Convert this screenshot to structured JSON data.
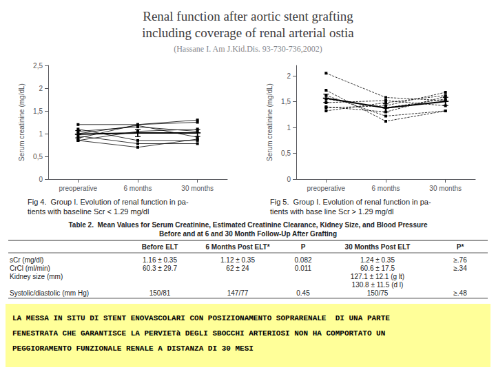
{
  "title": [
    "Renal function after aortic stent grafting",
    "including coverage of renal arterial ostia"
  ],
  "subtitle": "(Hassane I. Am J.Kid.Dis. 93-730-736,2002)",
  "chart_data": [
    {
      "type": "line",
      "caption": [
        "Fig 4.  Group I. Evolution of renal function in pa-",
        "tients with baseline Scr < 1.29 mg/dl"
      ],
      "categories": [
        "preoperative",
        "6 months",
        "30 months"
      ],
      "ylabel": "Serum creatinine (mg/dL)",
      "ylim": [
        0,
        2.5
      ],
      "yticks": [
        0,
        {
          "value": 0.5,
          "label": "0,5"
        },
        1,
        {
          "value": 1.5,
          "label": "1,5"
        },
        2,
        {
          "value": 2.5,
          "label": "2,5"
        }
      ],
      "grid": false,
      "series": [
        {
          "color": "#000000",
          "line_style": "solid",
          "marker": "square",
          "values": [
            0.9,
            1.2,
            1.3
          ]
        },
        {
          "color": "#000000",
          "line_style": "solid",
          "marker": "square",
          "values": [
            1.05,
            1.15,
            1.05
          ]
        },
        {
          "color": "#000000",
          "line_style": "solid",
          "marker": "square",
          "values": [
            1.1,
            0.85,
            0.85
          ]
        },
        {
          "color": "#000000",
          "line_style": "solid",
          "marker": "square",
          "values": [
            0.85,
            0.7,
            0.88
          ]
        },
        {
          "color": "#000000",
          "line_style": "solid",
          "marker": "square",
          "values": [
            1.2,
            1.2,
            1.25
          ]
        },
        {
          "color": "#000000",
          "line_style": "solid",
          "marker": "square",
          "values": [
            0.85,
            1.05,
            1.1
          ]
        },
        {
          "color": "#000000",
          "line_style": "solid",
          "marker": "square",
          "values": [
            1.0,
            1.18,
            0.92
          ]
        },
        {
          "color": "#000000",
          "line_style": "solid",
          "marker": "square",
          "values": [
            0.95,
            0.78,
            0.78
          ]
        },
        {
          "color": "#000000",
          "line_style": "solid",
          "marker": "plus",
          "values": [
            0.9875,
            1.01375,
            1.01625
          ],
          "error": [
            0.08,
            0.08,
            0.08
          ]
        }
      ]
    },
    {
      "type": "line",
      "caption": [
        "Fig 5.  Group I. Evolution of renal function in pa-",
        "tients with base line Scr > 1.29 mg/dl"
      ],
      "categories": [
        "preoperative",
        "6 months",
        "30 months"
      ],
      "ylabel": "Serum creatinine (mg/dL)",
      "ylim": [
        0,
        2.2
      ],
      "yticks": [
        0,
        {
          "value": 0.5,
          "label": "0,5"
        },
        1,
        {
          "value": 1.5,
          "label": "1,5"
        },
        2
      ],
      "grid": false,
      "series": [
        {
          "color": "#000000",
          "line_style": "dashed",
          "marker": "square",
          "values": [
            1.4,
            1.3,
            1.6
          ]
        },
        {
          "color": "#000000",
          "line_style": "dashed",
          "marker": "square",
          "values": [
            1.55,
            1.38,
            1.55
          ]
        },
        {
          "color": "#000000",
          "line_style": "dashed",
          "marker": "square",
          "values": [
            1.38,
            1.42,
            1.68
          ]
        },
        {
          "color": "#000000",
          "line_style": "dashed",
          "marker": "square",
          "values": [
            1.62,
            1.22,
            1.32
          ]
        },
        {
          "color": "#000000",
          "line_style": "dashed",
          "marker": "square",
          "values": [
            1.48,
            1.52,
            1.42
          ]
        },
        {
          "color": "#000000",
          "line_style": "dashed",
          "marker": "square",
          "values": [
            2.05,
            1.58,
            1.52
          ]
        },
        {
          "color": "#000000",
          "line_style": "dashed",
          "marker": "square",
          "values": [
            1.72,
            1.12,
            1.32
          ]
        },
        {
          "color": "#000000",
          "line_style": "dashed",
          "marker": "square",
          "values": [
            1.32,
            1.48,
            1.62
          ]
        },
        {
          "color": "#000000",
          "line_style": "solid",
          "marker": "plus",
          "values": [
            1.565,
            1.3775,
            1.50375
          ],
          "error": [
            0.08,
            0.08,
            0.08
          ]
        }
      ]
    }
  ],
  "table": {
    "title": [
      "Table 2.  Mean Values for Serum Creatinine, Estimated Creatinine Clearance, Kidney Size, and Blood Pressure",
      "Before and at 6 and 30 Month Follow-Up After Grafting"
    ],
    "headers": [
      "Before ELT",
      "6 Months Post ELT*",
      "P",
      "30 Months Post ELT",
      "P*"
    ],
    "rows": [
      [
        "sCr (mg/dl)",
        "1.16 ± 0.35",
        "1.12 ± 0.35",
        "0.082",
        "1.24 ± 0.35",
        "≥.76"
      ],
      [
        "CrCl (ml/min)",
        "60.3 ± 29.7",
        "62 ± 24",
        "0.011",
        "60.6 ± 17.5",
        "≥.34"
      ],
      [
        "Kidney size (mm)",
        null,
        null,
        null,
        "127.1 ± 12.1 (g lt)",
        null
      ],
      [
        null,
        null,
        null,
        null,
        "130.8 ± 11.5 (d l)",
        null
      ],
      [
        "Systolic/diastolic (mm Hg)",
        "150/81",
        "147/77",
        "0.45",
        "150/75",
        "≥.48"
      ]
    ]
  },
  "note": {
    "text": [
      "LA MESSA IN SITU DI STENT ENOVASCOLARI CON POSIZIONAMENTO SOPRARENALE  DI UNA PARTE",
      "FENESTRATA CHE GARANTISCE LA PERVIETà DEGLI SBOCCHI ARTERIOSI NON HA COMPORTATO UN",
      "PEGGIORAMENTO FUNZIONALE RENALE A DISTANZA DI 30 MESI"
    ],
    "color": "#FFFF99"
  }
}
